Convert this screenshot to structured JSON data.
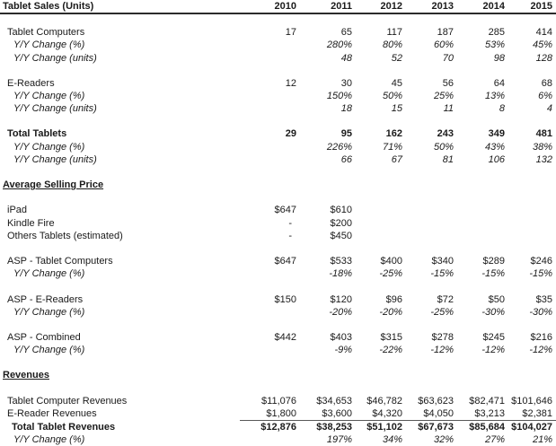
{
  "header": {
    "title": "Tablet Sales (Units)",
    "years": [
      "2010",
      "2011",
      "2012",
      "2013",
      "2014",
      "2015"
    ]
  },
  "colors": {
    "text": "#1a1a1a",
    "header_rule": "#2b2b2b",
    "subtotal_rule": "#595959",
    "background": "#ffffff"
  },
  "rows": [
    {
      "style": "blank",
      "label": "",
      "values": [
        "",
        "",
        "",
        "",
        "",
        ""
      ]
    },
    {
      "style": "item",
      "label": "Tablet Computers",
      "values": [
        "17",
        "65",
        "117",
        "187",
        "285",
        "414"
      ]
    },
    {
      "style": "yy",
      "label": "Y/Y Change (%)",
      "values": [
        "",
        "280%",
        "80%",
        "60%",
        "53%",
        "45%"
      ]
    },
    {
      "style": "yy",
      "label": "Y/Y Change (units)",
      "values": [
        "",
        "48",
        "52",
        "70",
        "98",
        "128"
      ]
    },
    {
      "style": "blank",
      "label": "",
      "values": [
        "",
        "",
        "",
        "",
        "",
        ""
      ]
    },
    {
      "style": "item",
      "label": "E-Readers",
      "values": [
        "12",
        "30",
        "45",
        "56",
        "64",
        "68"
      ]
    },
    {
      "style": "yy",
      "label": "Y/Y Change (%)",
      "values": [
        "",
        "150%",
        "50%",
        "25%",
        "13%",
        "6%"
      ]
    },
    {
      "style": "yy",
      "label": "Y/Y Change (units)",
      "values": [
        "",
        "18",
        "15",
        "11",
        "8",
        "4"
      ]
    },
    {
      "style": "blank",
      "label": "",
      "values": [
        "",
        "",
        "",
        "",
        "",
        ""
      ]
    },
    {
      "style": "total",
      "label": "Total Tablets",
      "values": [
        "29",
        "95",
        "162",
        "243",
        "349",
        "481"
      ]
    },
    {
      "style": "yy",
      "label": "Y/Y Change (%)",
      "values": [
        "",
        "226%",
        "71%",
        "50%",
        "43%",
        "38%"
      ]
    },
    {
      "style": "yy",
      "label": "Y/Y Change (units)",
      "values": [
        "",
        "66",
        "67",
        "81",
        "106",
        "132"
      ]
    },
    {
      "style": "blank",
      "label": "",
      "values": [
        "",
        "",
        "",
        "",
        "",
        ""
      ]
    },
    {
      "style": "section",
      "label": "Average Selling Price",
      "values": [
        "",
        "",
        "",
        "",
        "",
        ""
      ]
    },
    {
      "style": "blank",
      "label": "",
      "values": [
        "",
        "",
        "",
        "",
        "",
        ""
      ]
    },
    {
      "style": "item",
      "label": "iPad",
      "values": [
        "$647",
        "$610",
        "",
        "",
        "",
        ""
      ]
    },
    {
      "style": "item",
      "label": "Kindle Fire",
      "values": [
        "-",
        "$200",
        "",
        "",
        "",
        ""
      ]
    },
    {
      "style": "item",
      "label": "Others Tablets (estimated)",
      "values": [
        "-",
        "$450",
        "",
        "",
        "",
        ""
      ]
    },
    {
      "style": "blank",
      "label": "",
      "values": [
        "",
        "",
        "",
        "",
        "",
        ""
      ]
    },
    {
      "style": "item",
      "label": "ASP - Tablet Computers",
      "values": [
        "$647",
        "$533",
        "$400",
        "$340",
        "$289",
        "$246"
      ]
    },
    {
      "style": "yy",
      "label": "Y/Y Change (%)",
      "values": [
        "",
        "-18%",
        "-25%",
        "-15%",
        "-15%",
        "-15%"
      ]
    },
    {
      "style": "blank",
      "label": "",
      "values": [
        "",
        "",
        "",
        "",
        "",
        ""
      ]
    },
    {
      "style": "item",
      "label": "ASP - E-Readers",
      "values": [
        "$150",
        "$120",
        "$96",
        "$72",
        "$50",
        "$35"
      ]
    },
    {
      "style": "yy",
      "label": "Y/Y Change (%)",
      "values": [
        "",
        "-20%",
        "-20%",
        "-25%",
        "-30%",
        "-30%"
      ]
    },
    {
      "style": "blank",
      "label": "",
      "values": [
        "",
        "",
        "",
        "",
        "",
        ""
      ]
    },
    {
      "style": "item",
      "label": "ASP - Combined",
      "values": [
        "$442",
        "$403",
        "$315",
        "$278",
        "$245",
        "$216"
      ]
    },
    {
      "style": "yy",
      "label": "Y/Y Change (%)",
      "values": [
        "",
        "-9%",
        "-22%",
        "-12%",
        "-12%",
        "-12%"
      ]
    },
    {
      "style": "blank",
      "label": "",
      "values": [
        "",
        "",
        "",
        "",
        "",
        ""
      ]
    },
    {
      "style": "section",
      "label": "Revenues",
      "values": [
        "",
        "",
        "",
        "",
        "",
        ""
      ]
    },
    {
      "style": "blank",
      "label": "",
      "values": [
        "",
        "",
        "",
        "",
        "",
        ""
      ]
    },
    {
      "style": "item",
      "label": "Tablet Computer Revenues",
      "values": [
        "$11,076",
        "$34,653",
        "$46,782",
        "$63,623",
        "$82,471",
        "$101,646"
      ]
    },
    {
      "style": "item",
      "rule": true,
      "label": "E-Reader Revenues",
      "values": [
        "$1,800",
        "$3,600",
        "$4,320",
        "$4,050",
        "$3,213",
        "$2,381"
      ]
    },
    {
      "style": "totalindent",
      "label": "Total Tablet Revenues",
      "values": [
        "$12,876",
        "$38,253",
        "$51,102",
        "$67,673",
        "$85,684",
        "$104,027"
      ]
    },
    {
      "style": "yy",
      "label": "Y/Y Change (%)",
      "values": [
        "",
        "197%",
        "34%",
        "32%",
        "27%",
        "21%"
      ]
    }
  ]
}
